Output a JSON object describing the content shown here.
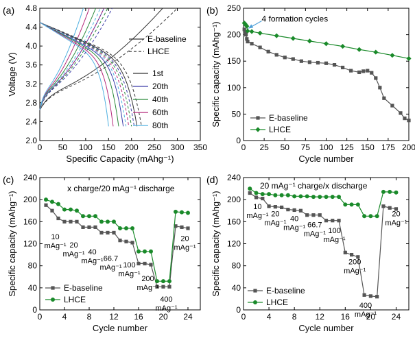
{
  "chart_data": [
    {
      "id": "a",
      "panel_label": "(a)",
      "type": "line",
      "xlabel": "Specific Capacity (mAhg⁻¹)",
      "ylabel": "Voltage (V)",
      "xlim": [
        0,
        350
      ],
      "ylim": [
        2.0,
        4.8
      ],
      "xticks": [
        0,
        50,
        100,
        150,
        200,
        250,
        300,
        350
      ],
      "yticks": [
        2.0,
        2.4,
        2.8,
        3.2,
        3.6,
        4.0,
        4.4,
        4.8
      ],
      "style_legend": [
        {
          "name": "E-baseline",
          "dash": "solid"
        },
        {
          "name": "LHCE",
          "dash": "dashed"
        }
      ],
      "cycle_legend": [
        {
          "name": "1st",
          "color": "#333333"
        },
        {
          "name": "20th",
          "color": "#3a3aa8"
        },
        {
          "name": "40th",
          "color": "#2a8a3a"
        },
        {
          "name": "60th",
          "color": "#b4287a"
        },
        {
          "name": "80th",
          "color": "#4fb0e0"
        }
      ],
      "curves": {
        "E-baseline": [
          {
            "cycle": "1st",
            "charge_cap": 268,
            "discharge_cap": 212
          },
          {
            "cycle": "20th",
            "charge_cap": 140,
            "discharge_cap": 182
          },
          {
            "cycle": "40th",
            "charge_cap": 122,
            "discharge_cap": 172
          },
          {
            "cycle": "60th",
            "charge_cap": 108,
            "discharge_cap": 160
          },
          {
            "cycle": "80th",
            "charge_cap": 95,
            "discharge_cap": 150
          }
        ],
        "LHCE": [
          {
            "cycle": "1st",
            "charge_cap": 300,
            "discharge_cap": 222
          },
          {
            "cycle": "20th",
            "charge_cap": 158,
            "discharge_cap": 206
          },
          {
            "cycle": "40th",
            "charge_cap": 148,
            "discharge_cap": 200
          },
          {
            "cycle": "60th",
            "charge_cap": 140,
            "discharge_cap": 194
          },
          {
            "cycle": "80th",
            "charge_cap": 132,
            "discharge_cap": 188
          }
        ]
      }
    },
    {
      "id": "b",
      "panel_label": "(b)",
      "type": "line",
      "xlabel": "Cycle number",
      "ylabel": "Specific capacity (mAhg⁻¹)",
      "xlim": [
        0,
        200
      ],
      "ylim": [
        0,
        250
      ],
      "xticks": [
        0,
        25,
        50,
        75,
        100,
        125,
        150,
        175,
        200
      ],
      "yticks": [
        0,
        50,
        100,
        150,
        200,
        250
      ],
      "annotation": "4 formation cycles",
      "series": [
        {
          "name": "E-baseline",
          "color": "#555555",
          "marker": "square",
          "x": [
            1,
            2,
            3,
            4,
            5,
            10,
            20,
            30,
            40,
            50,
            60,
            70,
            80,
            90,
            100,
            110,
            120,
            130,
            140,
            145,
            150,
            155,
            160,
            165,
            170,
            180,
            190,
            195,
            200
          ],
          "y": [
            210,
            205,
            200,
            192,
            187,
            183,
            176,
            168,
            162,
            157,
            154,
            150,
            148,
            147,
            146,
            143,
            138,
            132,
            129,
            131,
            132,
            128,
            118,
            100,
            80,
            66,
            52,
            42,
            38
          ]
        },
        {
          "name": "LHCE",
          "color": "#1a8a2a",
          "marker": "diamond",
          "x": [
            1,
            2,
            3,
            4,
            5,
            10,
            20,
            40,
            60,
            80,
            100,
            120,
            140,
            160,
            180,
            200
          ],
          "y": [
            222,
            220,
            218,
            216,
            207,
            206,
            203,
            198,
            193,
            188,
            183,
            178,
            172,
            167,
            161,
            155
          ]
        }
      ]
    },
    {
      "id": "c",
      "panel_label": "(c)",
      "type": "line",
      "title": "x charge/20 mAg⁻¹ discharge",
      "xlabel": "Cycle number",
      "ylabel": "Specific capacity (mAhg⁻¹)",
      "xlim": [
        0,
        26
      ],
      "ylim": [
        0,
        240
      ],
      "xticks": [
        0,
        4,
        8,
        12,
        16,
        20,
        24
      ],
      "yticks": [
        0,
        40,
        80,
        120,
        160,
        200,
        240
      ],
      "series": [
        {
          "name": "E-baseline",
          "color": "#555555",
          "marker": "square",
          "x": [
            1,
            2,
            3,
            4,
            5,
            6,
            7,
            8,
            9,
            10,
            11,
            12,
            13,
            14,
            15,
            16,
            17,
            18,
            19,
            20,
            21,
            22,
            23,
            24
          ],
          "y": [
            190,
            180,
            166,
            160,
            160,
            160,
            150,
            150,
            150,
            140,
            140,
            140,
            126,
            124,
            122,
            84,
            84,
            82,
            42,
            42,
            42,
            152,
            150,
            148
          ]
        },
        {
          "name": "LHCE",
          "color": "#1a8a2a",
          "marker": "circle",
          "x": [
            1,
            2,
            3,
            4,
            5,
            6,
            7,
            8,
            9,
            10,
            11,
            12,
            13,
            14,
            15,
            16,
            17,
            18,
            19,
            20,
            21,
            22,
            23,
            24
          ],
          "y": [
            200,
            196,
            192,
            182,
            182,
            180,
            170,
            170,
            170,
            160,
            160,
            160,
            148,
            148,
            148,
            106,
            106,
            106,
            52,
            52,
            52,
            178,
            177,
            176
          ]
        }
      ],
      "rate_labels": [
        {
          "value": "10",
          "unit": "mAg⁻¹",
          "x": 2.5,
          "y": 128
        },
        {
          "value": "20",
          "unit": "mAg⁻¹",
          "x": 5.5,
          "y": 113
        },
        {
          "value": "40",
          "unit": "mAg⁻¹",
          "x": 8.5,
          "y": 101
        },
        {
          "value": "66.7",
          "unit": "mAg⁻¹",
          "x": 11.5,
          "y": 89
        },
        {
          "value": "100",
          "unit": "mAg⁻¹",
          "x": 14.5,
          "y": 77
        },
        {
          "value": "200",
          "unit": "mAg⁻¹",
          "x": 17.5,
          "y": 52
        },
        {
          "value": "400",
          "unit": "mAg⁻¹",
          "x": 20.5,
          "y": 15
        },
        {
          "value": "20",
          "unit": "mAg⁻¹",
          "x": 23.5,
          "y": 125
        }
      ]
    },
    {
      "id": "d",
      "panel_label": "(d)",
      "type": "line",
      "title": "20 mAg⁻¹ charge/x discharge",
      "xlabel": "Cycle number",
      "ylabel": "Specific capacity (mAhg⁻¹)",
      "xlim": [
        0,
        26
      ],
      "ylim": [
        0,
        240
      ],
      "xticks": [
        0,
        4,
        8,
        12,
        16,
        20,
        24
      ],
      "yticks": [
        0,
        40,
        80,
        120,
        160,
        200,
        240
      ],
      "series": [
        {
          "name": "E-baseline",
          "color": "#555555",
          "marker": "square",
          "x": [
            1,
            2,
            3,
            4,
            5,
            6,
            7,
            8,
            9,
            10,
            11,
            12,
            13,
            14,
            15,
            16,
            17,
            18,
            19,
            20,
            21,
            22,
            23,
            24
          ],
          "y": [
            212,
            204,
            202,
            188,
            187,
            186,
            182,
            181,
            180,
            172,
            172,
            172,
            162,
            162,
            162,
            104,
            100,
            96,
            27,
            25,
            24,
            188,
            185,
            183
          ]
        },
        {
          "name": "LHCE",
          "color": "#1a8a2a",
          "marker": "circle",
          "x": [
            1,
            2,
            3,
            4,
            5,
            6,
            7,
            8,
            9,
            10,
            11,
            12,
            13,
            14,
            15,
            16,
            17,
            18,
            19,
            20,
            21,
            22,
            23,
            24
          ],
          "y": [
            220,
            212,
            210,
            210,
            208,
            208,
            208,
            206,
            206,
            206,
            205,
            205,
            205,
            205,
            205,
            191,
            191,
            191,
            170,
            170,
            170,
            214,
            214,
            213
          ]
        }
      ],
      "rate_labels": [
        {
          "value": "10",
          "unit": "mAg⁻¹",
          "x": 2.2,
          "y": 183
        },
        {
          "value": "20",
          "unit": "mAg⁻¹",
          "x": 5.0,
          "y": 170
        },
        {
          "value": "40",
          "unit": "mAg⁻¹",
          "x": 8.0,
          "y": 161
        },
        {
          "value": "66.7",
          "unit": "mAg⁻¹",
          "x": 11.2,
          "y": 150
        },
        {
          "value": "100",
          "unit": "mAg⁻¹",
          "x": 14.3,
          "y": 139
        },
        {
          "value": "200",
          "unit": "mAg⁻¹",
          "x": 17.5,
          "y": 83
        },
        {
          "value": "400",
          "unit": "mAg⁻¹",
          "x": 19.2,
          "y": 4
        },
        {
          "value": "20",
          "unit": "mAg⁻¹",
          "x": 24.0,
          "y": 170
        }
      ]
    }
  ],
  "legend_bc": [
    {
      "name": "E-baseline"
    },
    {
      "name": "LHCE"
    }
  ]
}
